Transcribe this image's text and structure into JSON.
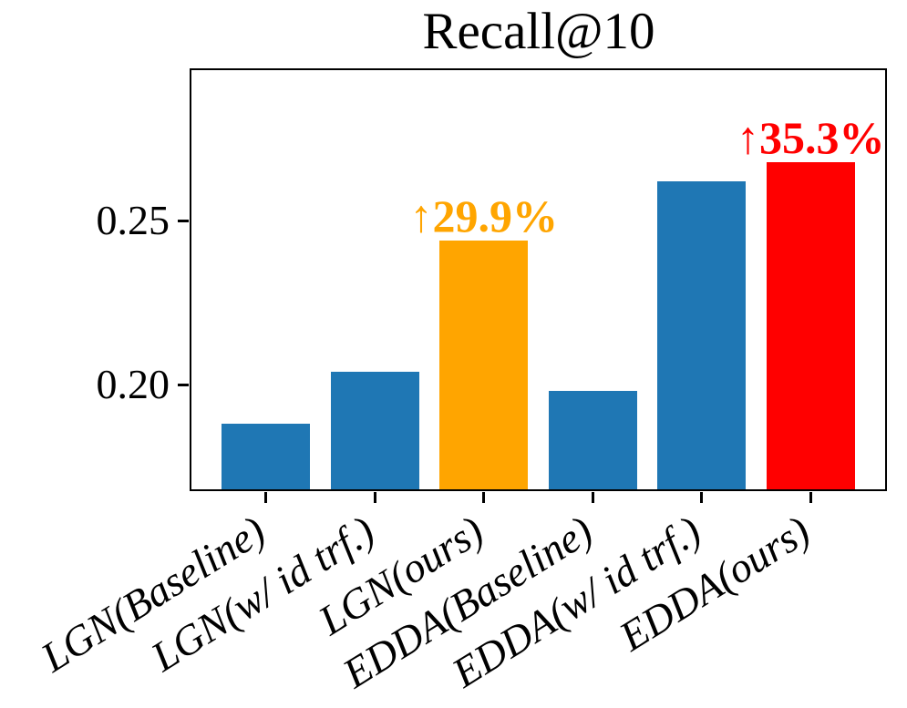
{
  "chart_data": {
    "type": "bar",
    "title": "Recall@10",
    "categories": [
      "LGN(Baseline)",
      "LGN(w/ id trf.)",
      "LGN(ours)",
      "EDDA(Baseline)",
      "EDDA(w/ id trf.)",
      "EDDA(ours)"
    ],
    "values": [
      0.188,
      0.204,
      0.244,
      0.198,
      0.262,
      0.268
    ],
    "bar_colors": [
      "#1f77b4",
      "#1f77b4",
      "#ffa500",
      "#1f77b4",
      "#1f77b4",
      "#ff0000"
    ],
    "ylim": [
      0.168,
      0.296
    ],
    "yticks": [
      {
        "value": 0.2,
        "label": "0.20"
      },
      {
        "value": 0.25,
        "label": "0.25"
      }
    ],
    "xlabel": "",
    "ylabel": "",
    "grid": false,
    "legend_position": "none",
    "annotations": [
      {
        "text": "↑29.9%",
        "bar_index": 2,
        "color": "#ffa500"
      },
      {
        "text": "↑35.3%",
        "bar_index": 5,
        "color": "#ff0000"
      }
    ],
    "colors": {
      "default_bar": "#1f77b4",
      "highlight_orange": "#ffa500",
      "highlight_red": "#ff0000",
      "axis": "#000000",
      "background": "#ffffff"
    }
  }
}
